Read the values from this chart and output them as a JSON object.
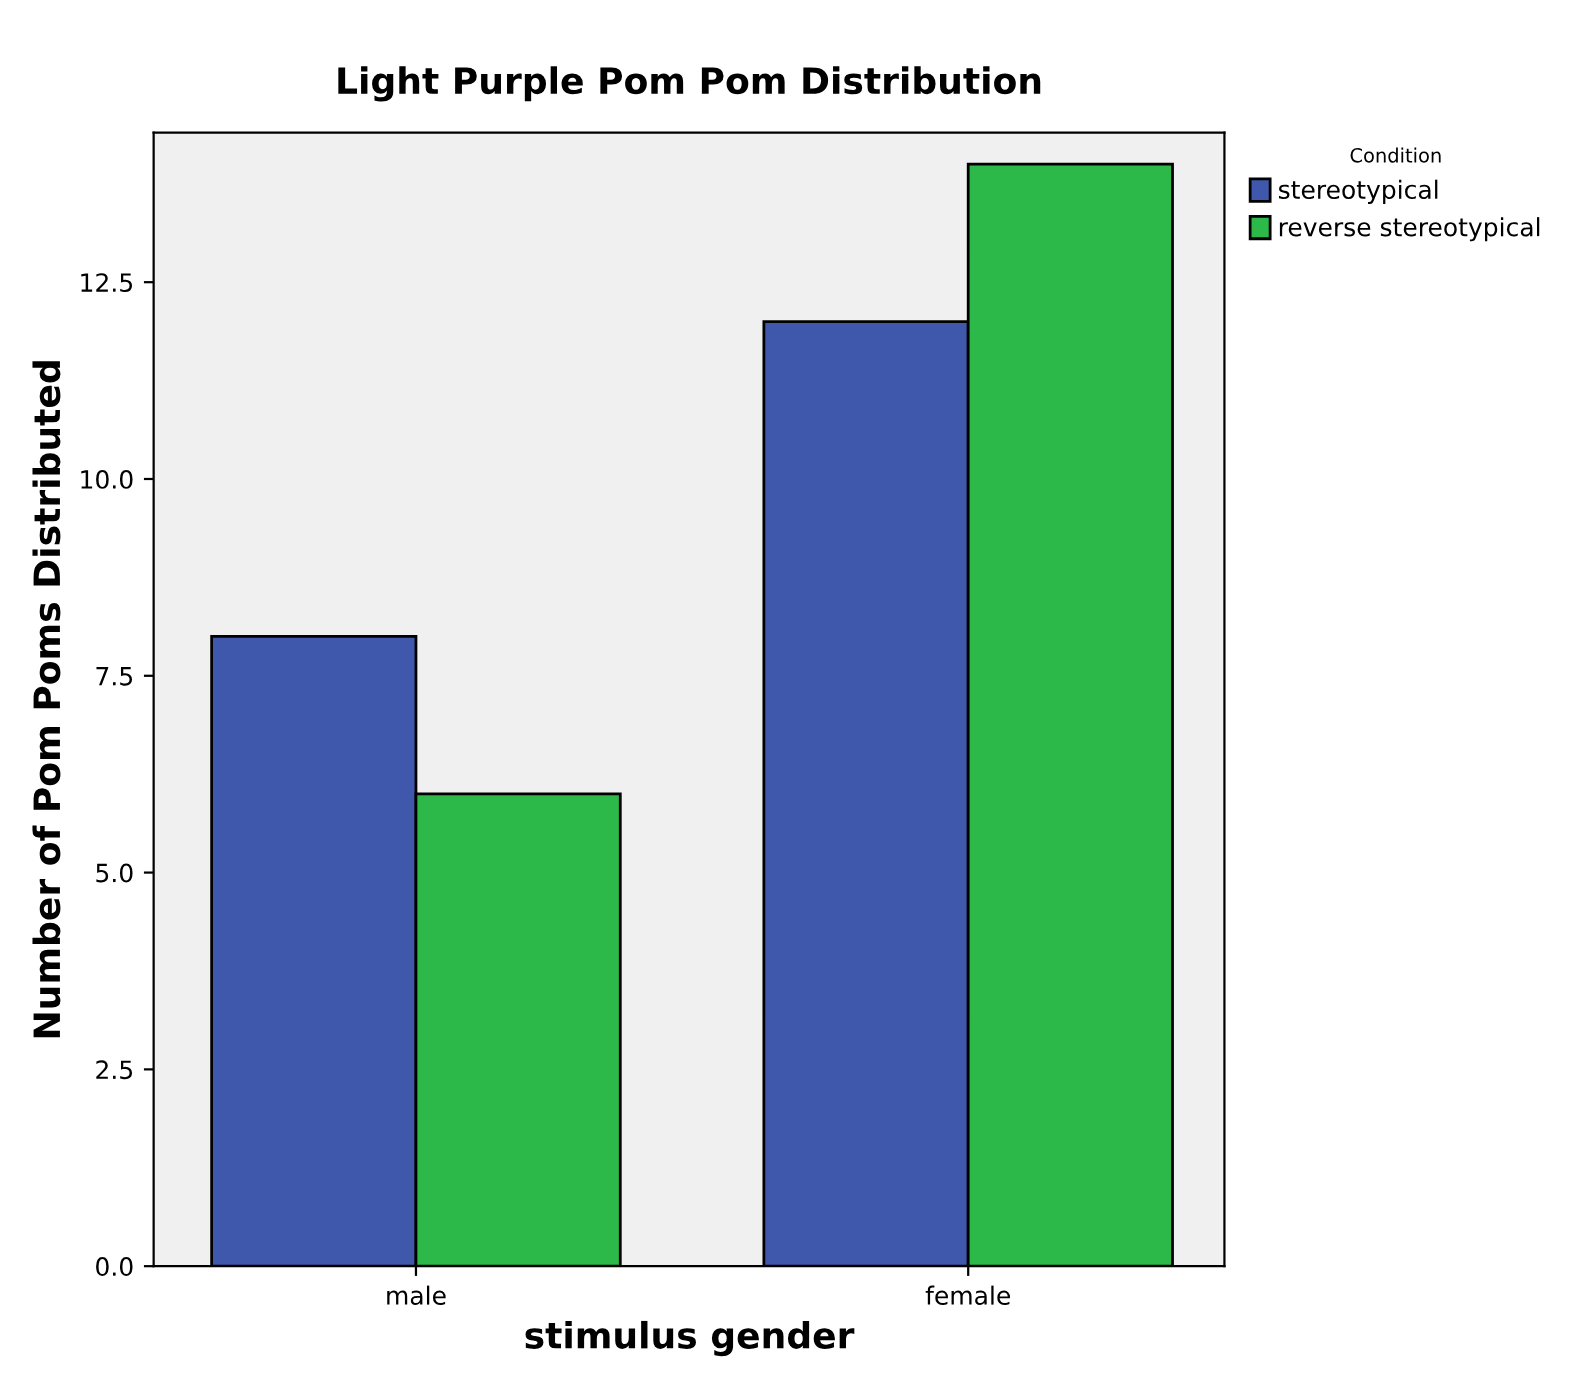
{
  "chart_data": {
    "type": "bar",
    "title": "Light Purple Pom Pom Distribution",
    "xlabel": "stimulus gender",
    "ylabel": "Number of Pom Poms Distributed",
    "legend_title": "Condition",
    "categories": [
      "male",
      "female"
    ],
    "series": [
      {
        "name": "stereotypical",
        "color": "#3f58ab",
        "values": [
          8,
          12
        ]
      },
      {
        "name": "reverse stereotypical",
        "color": "#2db84a",
        "values": [
          6,
          14
        ]
      }
    ],
    "ylim": [
      0,
      14.4
    ],
    "yticks": [
      {
        "value": 0,
        "label": "0.0"
      },
      {
        "value": 2.5,
        "label": "2.5"
      },
      {
        "value": 5,
        "label": "5.0"
      },
      {
        "value": 7.5,
        "label": "7.5"
      },
      {
        "value": 10,
        "label": "10.0"
      },
      {
        "value": 12.5,
        "label": "12.5"
      }
    ],
    "grid": false,
    "legend": "top right"
  }
}
